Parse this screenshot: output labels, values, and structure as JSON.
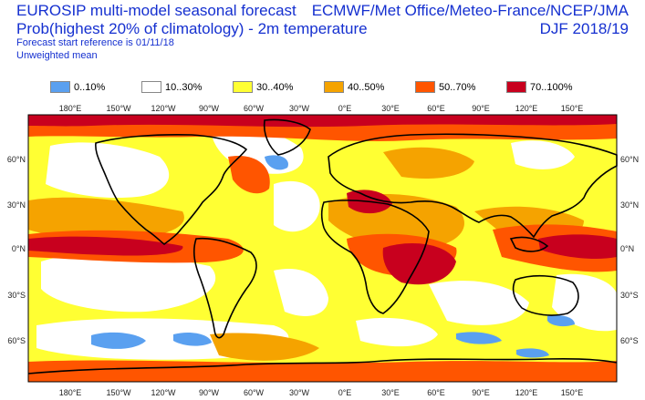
{
  "header": {
    "title": "EUROSIP multi-model seasonal forecast",
    "subtitle": "Prob(highest 20% of climatology) - 2m temperature",
    "forecast_ref": "Forecast start reference is 01/11/18",
    "weighting": "Unweighted mean",
    "centres": "ECMWF/Met Office/Meteo-France/NCEP/JMA",
    "season": "DJF 2018/19"
  },
  "legend": [
    {
      "label": "0..10%",
      "color": "#5aa0f0"
    },
    {
      "label": "10..30%",
      "color": "#ffffff"
    },
    {
      "label": "30..40%",
      "color": "#ffff33"
    },
    {
      "label": "40..50%",
      "color": "#f5a300"
    },
    {
      "label": "50..70%",
      "color": "#ff5500"
    },
    {
      "label": "70..100%",
      "color": "#c8001e"
    }
  ],
  "axes": {
    "lon_labels": [
      "180°E",
      "150°W",
      "120°W",
      "90°W",
      "60°W",
      "30°W",
      "0°E",
      "30°E",
      "60°E",
      "90°E",
      "120°E",
      "150°E"
    ],
    "lat_labels": [
      "60°N",
      "30°N",
      "0°N",
      "30°S",
      "60°S"
    ]
  }
}
